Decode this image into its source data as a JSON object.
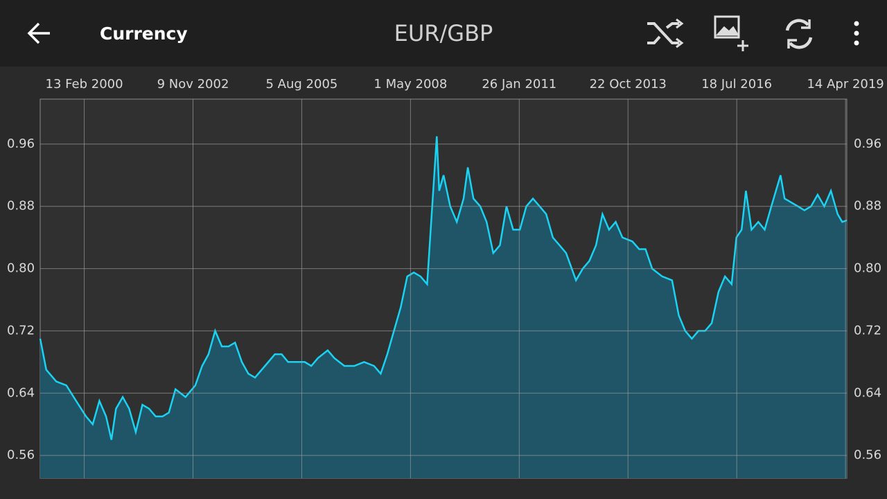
{
  "app_bar": {
    "section": "Currency"
  },
  "chart_data": {
    "type": "area",
    "title": "EUR/GBP",
    "color": "#1ad3f3",
    "fill": "#1f5566",
    "grid": true,
    "xlim": [
      "1999-01-04",
      "2019-04-26"
    ],
    "xticks": [
      {
        "value": "2000-02-13",
        "label": "13 Feb 2000"
      },
      {
        "value": "2002-11-09",
        "label": "9 Nov 2002"
      },
      {
        "value": "2005-08-05",
        "label": "5 Aug 2005"
      },
      {
        "value": "2008-05-01",
        "label": "1 May 2008"
      },
      {
        "value": "2011-01-26",
        "label": "26 Jan 2011"
      },
      {
        "value": "2013-10-22",
        "label": "22 Oct 2013"
      },
      {
        "value": "2016-07-18",
        "label": "18 Jul 2016"
      },
      {
        "value": "2019-04-14",
        "label": "14 Apr 2019"
      }
    ],
    "ylim": [
      0.5307,
      1.0178
    ],
    "yticks": [
      0.56,
      0.64,
      0.72,
      {
        "value": 0.8,
        "label": "0.80"
      },
      0.88,
      0.96
    ],
    "x": [
      "1999-01-04",
      "1999-03-01",
      "1999-06-01",
      "1999-09-01",
      "1999-12-01",
      "2000-03-01",
      "2000-05-01",
      "2000-07-01",
      "2000-09-01",
      "2000-10-20",
      "2000-12-01",
      "2001-02-01",
      "2001-04-01",
      "2001-06-01",
      "2001-08-01",
      "2001-10-01",
      "2001-12-01",
      "2002-02-01",
      "2002-04-01",
      "2002-06-01",
      "2002-09-01",
      "2002-12-01",
      "2003-02-01",
      "2003-04-01",
      "2003-06-01",
      "2003-08-01",
      "2003-10-01",
      "2003-12-01",
      "2004-02-01",
      "2004-04-01",
      "2004-06-01",
      "2004-09-01",
      "2004-12-01",
      "2005-02-01",
      "2005-04-01",
      "2005-07-01",
      "2005-09-01",
      "2005-11-01",
      "2006-01-01",
      "2006-04-01",
      "2006-06-01",
      "2006-09-01",
      "2006-12-01",
      "2007-03-01",
      "2007-06-01",
      "2007-08-01",
      "2007-10-01",
      "2007-12-01",
      "2008-02-01",
      "2008-04-01",
      "2008-06-01",
      "2008-08-01",
      "2008-10-01",
      "2008-12-29",
      "2009-01-20",
      "2009-03-01",
      "2009-05-01",
      "2009-07-01",
      "2009-09-01",
      "2009-10-10",
      "2009-12-01",
      "2010-02-01",
      "2010-04-01",
      "2010-06-01",
      "2010-08-01",
      "2010-10-01",
      "2010-12-01",
      "2011-02-01",
      "2011-04-01",
      "2011-06-01",
      "2011-08-01",
      "2011-10-01",
      "2011-12-01",
      "2012-02-01",
      "2012-04-01",
      "2012-07-01",
      "2012-09-01",
      "2012-11-01",
      "2013-01-01",
      "2013-03-01",
      "2013-05-01",
      "2013-07-01",
      "2013-09-01",
      "2013-12-01",
      "2014-02-01",
      "2014-04-01",
      "2014-06-01",
      "2014-09-01",
      "2014-12-01",
      "2015-02-01",
      "2015-04-01",
      "2015-06-01",
      "2015-08-01",
      "2015-10-01",
      "2015-12-01",
      "2016-02-01",
      "2016-04-01",
      "2016-06-01",
      "2016-07-15",
      "2016-09-01",
      "2016-10-10",
      "2016-12-01",
      "2017-02-01",
      "2017-04-01",
      "2017-06-01",
      "2017-08-25",
      "2017-10-01",
      "2017-12-01",
      "2018-02-01",
      "2018-04-01",
      "2018-06-01",
      "2018-08-01",
      "2018-10-01",
      "2018-12-01",
      "2019-02-01",
      "2019-03-15",
      "2019-04-26"
    ],
    "values": [
      0.71,
      0.67,
      0.655,
      0.65,
      0.63,
      0.61,
      0.6,
      0.63,
      0.61,
      0.58,
      0.62,
      0.635,
      0.62,
      0.59,
      0.625,
      0.62,
      0.61,
      0.61,
      0.615,
      0.645,
      0.635,
      0.65,
      0.675,
      0.69,
      0.72,
      0.7,
      0.7,
      0.705,
      0.68,
      0.665,
      0.66,
      0.675,
      0.69,
      0.69,
      0.68,
      0.68,
      0.68,
      0.675,
      0.685,
      0.695,
      0.685,
      0.675,
      0.675,
      0.68,
      0.675,
      0.665,
      0.69,
      0.72,
      0.75,
      0.79,
      0.795,
      0.79,
      0.78,
      0.97,
      0.9,
      0.92,
      0.88,
      0.86,
      0.89,
      0.93,
      0.89,
      0.88,
      0.86,
      0.82,
      0.83,
      0.88,
      0.85,
      0.85,
      0.88,
      0.89,
      0.88,
      0.87,
      0.84,
      0.83,
      0.82,
      0.785,
      0.8,
      0.81,
      0.83,
      0.87,
      0.85,
      0.86,
      0.84,
      0.835,
      0.825,
      0.825,
      0.8,
      0.79,
      0.785,
      0.74,
      0.72,
      0.71,
      0.72,
      0.72,
      0.73,
      0.77,
      0.79,
      0.78,
      0.84,
      0.85,
      0.9,
      0.85,
      0.86,
      0.85,
      0.88,
      0.92,
      0.89,
      0.885,
      0.88,
      0.875,
      0.88,
      0.895,
      0.88,
      0.9,
      0.87,
      0.86,
      0.862
    ]
  }
}
